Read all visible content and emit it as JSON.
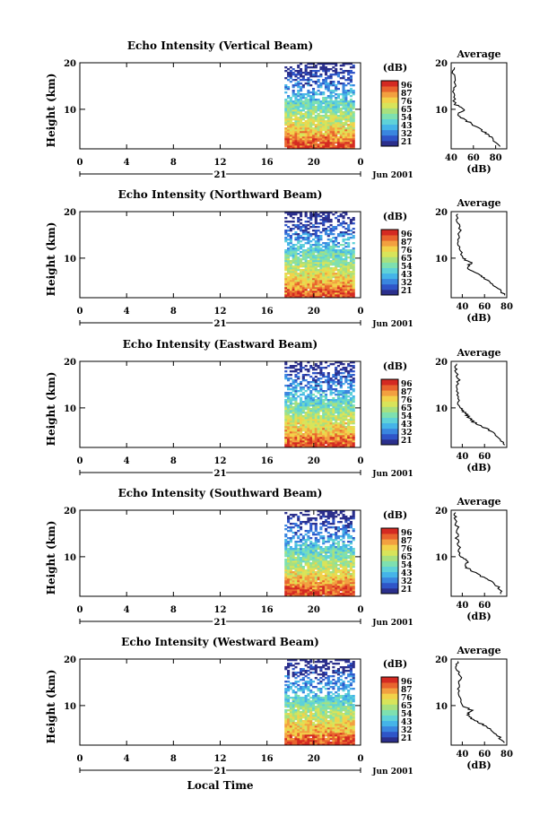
{
  "figure": {
    "x_axis_label": "Local Time",
    "date_label": "Jun 2001",
    "day_label": "21",
    "colorbar_unit": "(dB)",
    "avg_title": "Average",
    "avg_xlabel": "(dB)",
    "y_axis_label": "Height (km)"
  },
  "colorscale": [
    "#2b2f8c",
    "#2f55c8",
    "#3a86df",
    "#45b4e8",
    "#5fd2d8",
    "#7ee0b0",
    "#a8e07e",
    "#d8e45a",
    "#f2d24a",
    "#f2a040",
    "#e8642e",
    "#d42a22"
  ],
  "chart_data": [
    {
      "type": "heatmap",
      "title": "Echo Intensity (Vertical Beam)",
      "ylabel": "Height (km)",
      "xlabel": "Local Time",
      "xlim": [
        0,
        24
      ],
      "x_ticks": [
        "0",
        "4",
        "8",
        "12",
        "16",
        "20",
        "0"
      ],
      "ylim": [
        1.5,
        20
      ],
      "y_ticks": [
        "10",
        "20"
      ],
      "data_range_hours": [
        17.5,
        23.5
      ],
      "colorbar_ticks": [
        "96",
        "87",
        "76",
        "65",
        "54",
        "43",
        "32",
        "21"
      ],
      "average_profile": {
        "xlabel": "(dB)",
        "x_ticks": [
          "40",
          "60",
          "80"
        ],
        "xlim": [
          40,
          90
        ],
        "points": [
          [
            84,
            2
          ],
          [
            76,
            4
          ],
          [
            70,
            5
          ],
          [
            64,
            6
          ],
          [
            58,
            7
          ],
          [
            50,
            8
          ],
          [
            46,
            9
          ],
          [
            52,
            10
          ],
          [
            44,
            11
          ],
          [
            42,
            13
          ],
          [
            43,
            15
          ],
          [
            42,
            17
          ],
          [
            43,
            19
          ]
        ]
      }
    },
    {
      "type": "heatmap",
      "title": "Echo Intensity (Northward Beam)",
      "ylabel": "Height (km)",
      "xlabel": "Local Time",
      "xlim": [
        0,
        24
      ],
      "x_ticks": [
        "0",
        "4",
        "8",
        "12",
        "16",
        "20",
        "0"
      ],
      "ylim": [
        1.5,
        20
      ],
      "y_ticks": [
        "10",
        "20"
      ],
      "data_range_hours": [
        17.5,
        23.5
      ],
      "colorbar_ticks": [
        "96",
        "87",
        "76",
        "65",
        "54",
        "43",
        "32",
        "21"
      ],
      "average_profile": {
        "xlabel": "(dB)",
        "x_ticks": [
          "40",
          "60",
          "80"
        ],
        "xlim": [
          30,
          80
        ],
        "points": [
          [
            78,
            2
          ],
          [
            72,
            3.5
          ],
          [
            64,
            5
          ],
          [
            58,
            6
          ],
          [
            50,
            7
          ],
          [
            44,
            8
          ],
          [
            48,
            9
          ],
          [
            40,
            10
          ],
          [
            38,
            12
          ],
          [
            36,
            14
          ],
          [
            38,
            16
          ],
          [
            35,
            18
          ],
          [
            36,
            19.5
          ]
        ]
      }
    },
    {
      "type": "heatmap",
      "title": "Echo Intensity (Eastward Beam)",
      "ylabel": "Height (km)",
      "xlabel": "Local Time",
      "xlim": [
        0,
        24
      ],
      "x_ticks": [
        "0",
        "4",
        "8",
        "12",
        "16",
        "20",
        "0"
      ],
      "ylim": [
        1.5,
        20
      ],
      "y_ticks": [
        "10",
        "20"
      ],
      "data_range_hours": [
        17.5,
        23.5
      ],
      "colorbar_ticks": [
        "96",
        "87",
        "76",
        "65",
        "54",
        "43",
        "32",
        "21"
      ],
      "average_profile": {
        "xlabel": "(dB)",
        "x_ticks": [
          "40",
          "60"
        ],
        "xlim": [
          30,
          80
        ],
        "points": [
          [
            78,
            2
          ],
          [
            74,
            3.5
          ],
          [
            66,
            5
          ],
          [
            58,
            6
          ],
          [
            50,
            7
          ],
          [
            46,
            8
          ],
          [
            42,
            9
          ],
          [
            38,
            10
          ],
          [
            36,
            12
          ],
          [
            35,
            14
          ],
          [
            37,
            16
          ],
          [
            34,
            18
          ],
          [
            35,
            19.5
          ]
        ]
      }
    },
    {
      "type": "heatmap",
      "title": "Echo Intensity (Southward Beam)",
      "ylabel": "Height (km)",
      "xlabel": "Local Time",
      "xlim": [
        0,
        24
      ],
      "x_ticks": [
        "0",
        "4",
        "8",
        "12",
        "16",
        "20",
        "0"
      ],
      "ylim": [
        1.5,
        20
      ],
      "y_ticks": [
        "10",
        "20"
      ],
      "data_range_hours": [
        17.5,
        23.5
      ],
      "colorbar_ticks": [
        "96",
        "87",
        "76",
        "65",
        "54",
        "43",
        "32",
        "21"
      ],
      "average_profile": {
        "xlabel": "(dB)",
        "x_ticks": [
          "40",
          "60"
        ],
        "xlim": [
          30,
          80
        ],
        "points": [
          [
            76,
            2
          ],
          [
            72,
            3.5
          ],
          [
            64,
            5
          ],
          [
            56,
            6
          ],
          [
            48,
            7
          ],
          [
            42,
            8
          ],
          [
            46,
            9
          ],
          [
            38,
            10
          ],
          [
            37,
            12
          ],
          [
            35,
            14
          ],
          [
            36,
            16
          ],
          [
            33,
            18
          ],
          [
            34,
            19.5
          ]
        ]
      }
    },
    {
      "type": "heatmap",
      "title": "Echo Intensity (Westward Beam)",
      "ylabel": "Height (km)",
      "xlabel": "Local Time",
      "xlim": [
        0,
        24
      ],
      "x_ticks": [
        "0",
        "4",
        "8",
        "12",
        "16",
        "20",
        "0"
      ],
      "ylim": [
        1.5,
        20
      ],
      "y_ticks": [
        "10",
        "20"
      ],
      "data_range_hours": [
        17.5,
        23.5
      ],
      "colorbar_ticks": [
        "96",
        "87",
        "76",
        "65",
        "54",
        "43",
        "32",
        "21"
      ],
      "average_profile": {
        "xlabel": "(dB)",
        "x_ticks": [
          "40",
          "60",
          "80"
        ],
        "xlim": [
          30,
          80
        ],
        "points": [
          [
            78,
            2
          ],
          [
            72,
            3.5
          ],
          [
            64,
            5
          ],
          [
            58,
            6
          ],
          [
            50,
            7
          ],
          [
            44,
            8
          ],
          [
            48,
            9
          ],
          [
            40,
            10
          ],
          [
            38,
            12
          ],
          [
            36,
            14
          ],
          [
            38,
            16
          ],
          [
            35,
            18
          ],
          [
            36,
            19.5
          ]
        ]
      }
    }
  ]
}
